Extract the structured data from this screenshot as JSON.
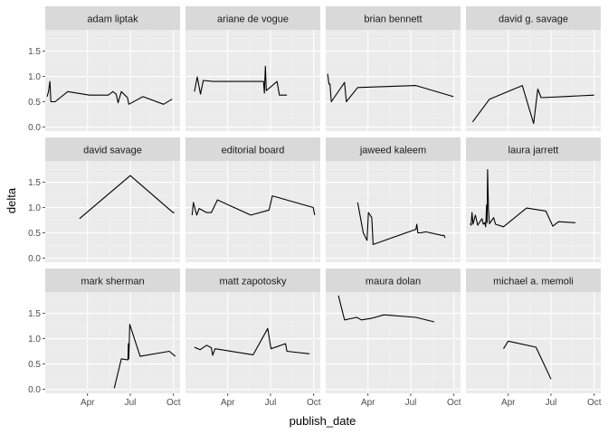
{
  "chart_data": {
    "type": "line",
    "layout": "facet_wrap",
    "xlabel": "publish_date",
    "ylabel": "delta",
    "x_ticks": [
      "Apr",
      "Jul",
      "Oct"
    ],
    "x_tick_dates": [
      "2018-04-01",
      "2018-07-01",
      "2018-10-01"
    ],
    "xlim": [
      "2018-01-01",
      "2018-10-15"
    ],
    "y_ticks": [
      0.0,
      0.5,
      1.0,
      1.5
    ],
    "y_tick_labels": [
      "0.0",
      "0.5",
      "1.0",
      "1.5"
    ],
    "ylim": [
      -0.08,
      1.92
    ],
    "grid": true,
    "panels": [
      {
        "name": "adam liptak",
        "points": [
          [
            "2018-01-05",
            0.6
          ],
          [
            "2018-01-08",
            0.7
          ],
          [
            "2018-01-11",
            0.9
          ],
          [
            "2018-01-13",
            0.5
          ],
          [
            "2018-01-22",
            0.5
          ],
          [
            "2018-02-18",
            0.7
          ],
          [
            "2018-04-05",
            0.63
          ],
          [
            "2018-05-15",
            0.63
          ],
          [
            "2018-05-25",
            0.7
          ],
          [
            "2018-06-01",
            0.65
          ],
          [
            "2018-06-05",
            0.48
          ],
          [
            "2018-06-12",
            0.7
          ],
          [
            "2018-06-25",
            0.58
          ],
          [
            "2018-06-28",
            0.45
          ],
          [
            "2018-07-28",
            0.6
          ],
          [
            "2018-09-10",
            0.45
          ],
          [
            "2018-09-28",
            0.55
          ]
        ]
      },
      {
        "name": "ariane de vogue",
        "points": [
          [
            "2018-01-20",
            0.7
          ],
          [
            "2018-01-26",
            0.99
          ],
          [
            "2018-02-02",
            0.65
          ],
          [
            "2018-02-08",
            0.92
          ],
          [
            "2018-03-01",
            0.9
          ],
          [
            "2018-06-16",
            0.9
          ],
          [
            "2018-06-18",
            0.67
          ],
          [
            "2018-06-20",
            1.2
          ],
          [
            "2018-06-22",
            0.72
          ],
          [
            "2018-06-30",
            0.78
          ],
          [
            "2018-07-15",
            0.9
          ],
          [
            "2018-07-20",
            0.63
          ],
          [
            "2018-08-05",
            0.63
          ]
        ]
      },
      {
        "name": "brian bennett",
        "points": [
          [
            "2018-01-05",
            1.05
          ],
          [
            "2018-01-08",
            0.85
          ],
          [
            "2018-01-10",
            0.85
          ],
          [
            "2018-01-13",
            0.5
          ],
          [
            "2018-02-10",
            0.88
          ],
          [
            "2018-02-14",
            0.5
          ],
          [
            "2018-03-10",
            0.78
          ],
          [
            "2018-07-12",
            0.82
          ],
          [
            "2018-09-30",
            0.6
          ]
        ]
      },
      {
        "name": "david g. savage",
        "points": [
          [
            "2018-01-15",
            0.1
          ],
          [
            "2018-02-20",
            0.55
          ],
          [
            "2018-05-01",
            0.82
          ],
          [
            "2018-05-25",
            0.07
          ],
          [
            "2018-06-03",
            0.75
          ],
          [
            "2018-06-10",
            0.58
          ],
          [
            "2018-07-25",
            0.6
          ],
          [
            "2018-10-01",
            0.63
          ]
        ]
      },
      {
        "name": "david savage",
        "points": [
          [
            "2018-03-15",
            0.78
          ],
          [
            "2018-07-01",
            1.63
          ],
          [
            "2018-09-30",
            0.9
          ],
          [
            "2018-10-03",
            0.9
          ]
        ]
      },
      {
        "name": "editorial board",
        "points": [
          [
            "2018-01-15",
            0.85
          ],
          [
            "2018-01-18",
            1.1
          ],
          [
            "2018-01-22",
            0.95
          ],
          [
            "2018-01-25",
            0.85
          ],
          [
            "2018-01-30",
            0.98
          ],
          [
            "2018-02-15",
            0.9
          ],
          [
            "2018-02-25",
            0.9
          ],
          [
            "2018-03-10",
            1.15
          ],
          [
            "2018-05-20",
            0.85
          ],
          [
            "2018-06-28",
            0.95
          ],
          [
            "2018-07-05",
            1.23
          ],
          [
            "2018-09-30",
            1.0
          ],
          [
            "2018-10-03",
            0.85
          ]
        ]
      },
      {
        "name": "jaweed kaleem",
        "points": [
          [
            "2018-03-10",
            1.1
          ],
          [
            "2018-03-22",
            0.5
          ],
          [
            "2018-03-30",
            0.35
          ],
          [
            "2018-04-02",
            0.9
          ],
          [
            "2018-04-09",
            0.8
          ],
          [
            "2018-04-12",
            0.27
          ],
          [
            "2018-07-12",
            0.57
          ],
          [
            "2018-07-14",
            0.67
          ],
          [
            "2018-07-16",
            0.5
          ],
          [
            "2018-07-22",
            0.5
          ],
          [
            "2018-08-02",
            0.52
          ],
          [
            "2018-09-05",
            0.45
          ],
          [
            "2018-09-10",
            0.45
          ],
          [
            "2018-09-12",
            0.4
          ]
        ]
      },
      {
        "name": "laura jarrett",
        "points": [
          [
            "2018-01-10",
            0.68
          ],
          [
            "2018-01-12",
            0.65
          ],
          [
            "2018-01-14",
            0.9
          ],
          [
            "2018-01-16",
            0.67
          ],
          [
            "2018-01-21",
            0.85
          ],
          [
            "2018-01-26",
            0.65
          ],
          [
            "2018-02-04",
            0.78
          ],
          [
            "2018-02-07",
            0.67
          ],
          [
            "2018-02-10",
            0.7
          ],
          [
            "2018-02-12",
            0.62
          ],
          [
            "2018-02-14",
            1.05
          ],
          [
            "2018-02-15",
            0.7
          ],
          [
            "2018-02-16",
            1.75
          ],
          [
            "2018-02-18",
            0.95
          ],
          [
            "2018-02-20",
            0.68
          ],
          [
            "2018-03-01",
            0.8
          ],
          [
            "2018-03-05",
            0.67
          ],
          [
            "2018-03-22",
            0.62
          ],
          [
            "2018-05-10",
            0.99
          ],
          [
            "2018-06-20",
            0.93
          ],
          [
            "2018-07-05",
            0.63
          ],
          [
            "2018-07-17",
            0.72
          ],
          [
            "2018-08-22",
            0.7
          ]
        ]
      },
      {
        "name": "mark sherman",
        "points": [
          [
            "2018-05-28",
            0.02
          ],
          [
            "2018-06-12",
            0.6
          ],
          [
            "2018-06-26",
            0.58
          ],
          [
            "2018-06-27",
            0.9
          ],
          [
            "2018-06-28",
            0.6
          ],
          [
            "2018-06-30",
            1.28
          ],
          [
            "2018-07-22",
            0.65
          ],
          [
            "2018-09-22",
            0.75
          ],
          [
            "2018-10-05",
            0.65
          ]
        ]
      },
      {
        "name": "matt zapotosky",
        "points": [
          [
            "2018-01-20",
            0.83
          ],
          [
            "2018-02-01",
            0.78
          ],
          [
            "2018-02-15",
            0.87
          ],
          [
            "2018-02-25",
            0.82
          ],
          [
            "2018-02-28",
            0.67
          ],
          [
            "2018-03-05",
            0.8
          ],
          [
            "2018-05-25",
            0.68
          ],
          [
            "2018-06-25",
            1.2
          ],
          [
            "2018-07-02",
            0.8
          ],
          [
            "2018-08-02",
            0.9
          ],
          [
            "2018-08-05",
            0.75
          ],
          [
            "2018-09-22",
            0.7
          ]
        ]
      },
      {
        "name": "maura dolan",
        "points": [
          [
            "2018-01-28",
            1.85
          ],
          [
            "2018-02-10",
            1.37
          ],
          [
            "2018-03-08",
            1.42
          ],
          [
            "2018-03-18",
            1.37
          ],
          [
            "2018-04-08",
            1.4
          ],
          [
            "2018-05-05",
            1.47
          ],
          [
            "2018-07-12",
            1.42
          ],
          [
            "2018-08-20",
            1.33
          ]
        ]
      },
      {
        "name": "michael a. memoli",
        "points": [
          [
            "2018-03-22",
            0.8
          ],
          [
            "2018-04-01",
            0.95
          ],
          [
            "2018-05-30",
            0.83
          ],
          [
            "2018-07-01",
            0.2
          ]
        ]
      }
    ]
  }
}
